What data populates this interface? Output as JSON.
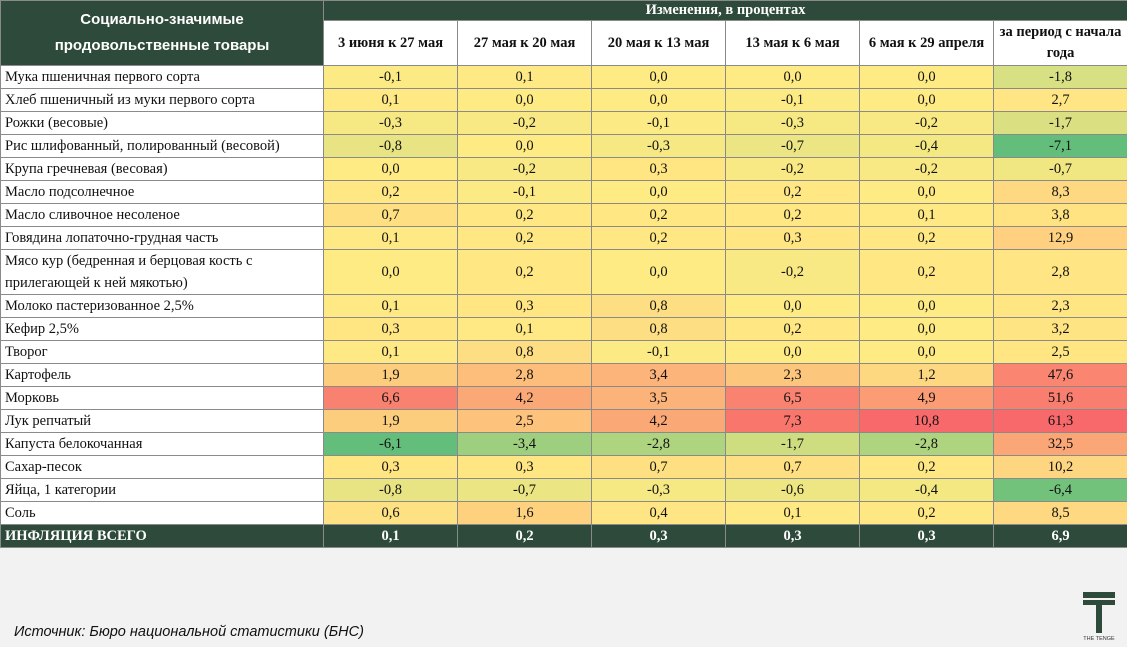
{
  "header": {
    "title": "Социально-значимые продовольственные товары",
    "group": "Изменения, в процентах",
    "columns": [
      "3 июня к 27 мая",
      "27 мая к 20 мая",
      "20 мая к 13 мая",
      "13 мая к 6 мая",
      "6 мая к 29 апреля",
      "за период с начала года"
    ]
  },
  "rows": [
    {
      "name": "Мука пшеничная первого сорта",
      "values": [
        "-0,1",
        "0,1",
        "0,0",
        "0,0",
        "0,0",
        "-1,8"
      ]
    },
    {
      "name": "Хлеб пшеничный из муки первого сорта",
      "values": [
        "0,1",
        "0,0",
        "0,0",
        "-0,1",
        "0,0",
        "2,7"
      ]
    },
    {
      "name": "Рожки (весовые)",
      "values": [
        "-0,3",
        "-0,2",
        "-0,1",
        "-0,3",
        "-0,2",
        "-1,7"
      ]
    },
    {
      "name": "Рис шлифованный, полированный (весовой)",
      "values": [
        "-0,8",
        "0,0",
        "-0,3",
        "-0,7",
        "-0,4",
        "-7,1"
      ]
    },
    {
      "name": "Крупа гречневая (весовая)",
      "values": [
        "0,0",
        "-0,2",
        "0,3",
        "-0,2",
        "-0,2",
        "-0,7"
      ]
    },
    {
      "name": "Масло подсолнечное",
      "values": [
        "0,2",
        "-0,1",
        "0,0",
        "0,2",
        "0,0",
        "8,3"
      ]
    },
    {
      "name": "Масло сливочное несоленое",
      "values": [
        "0,7",
        "0,2",
        "0,2",
        "0,2",
        "0,1",
        "3,8"
      ]
    },
    {
      "name": "Говядина лопаточно-грудная часть",
      "values": [
        "0,1",
        "0,2",
        "0,2",
        "0,3",
        "0,2",
        "12,9"
      ]
    },
    {
      "name": "Мясо кур (бедренная и берцовая кость с прилегающей к ней мякотью)",
      "values": [
        "0,0",
        "0,2",
        "0,0",
        "-0,2",
        "0,2",
        "2,8"
      ]
    },
    {
      "name": "Молоко пастеризованное 2,5%",
      "values": [
        "0,1",
        "0,3",
        "0,8",
        "0,0",
        "0,0",
        "2,3"
      ]
    },
    {
      "name": "Кефир 2,5%",
      "values": [
        "0,3",
        "0,1",
        "0,8",
        "0,2",
        "0,0",
        "3,2"
      ]
    },
    {
      "name": "Творог",
      "values": [
        "0,1",
        "0,8",
        "-0,1",
        "0,0",
        "0,0",
        "2,5"
      ]
    },
    {
      "name": "Картофель",
      "values": [
        "1,9",
        "2,8",
        "3,4",
        "2,3",
        "1,2",
        "47,6"
      ]
    },
    {
      "name": "Морковь",
      "values": [
        "6,6",
        "4,2",
        "3,5",
        "6,5",
        "4,9",
        "51,6"
      ]
    },
    {
      "name": "Лук репчатый",
      "values": [
        "1,9",
        "2,5",
        "4,2",
        "7,3",
        "10,8",
        "61,3"
      ]
    },
    {
      "name": "Капуста белокочанная",
      "values": [
        "-6,1",
        "-3,4",
        "-2,8",
        "-1,7",
        "-2,8",
        "32,5"
      ]
    },
    {
      "name": "Сахар-песок",
      "values": [
        "0,3",
        "0,3",
        "0,7",
        "0,7",
        "0,2",
        "10,2"
      ]
    },
    {
      "name": "Яйца, 1 категории",
      "values": [
        "-0,8",
        "-0,7",
        "-0,3",
        "-0,6",
        "-0,4",
        "-6,4"
      ]
    },
    {
      "name": "Соль",
      "values": [
        "0,6",
        "1,6",
        "0,4",
        "0,1",
        "0,2",
        "8,5"
      ]
    }
  ],
  "total": {
    "name": "ИНФЛЯЦИЯ ВСЕГО",
    "values": [
      "0,1",
      "0,2",
      "0,3",
      "0,3",
      "0,3",
      "6,9"
    ]
  },
  "source": "Источник: Бюро национальной статистики (БНС)",
  "logo": {
    "name": "the-tenge-logo",
    "text": "THE TENGE"
  },
  "colors": {
    "header_bg": "#2d4a3a",
    "green": "#63be7b",
    "yellow": "#ffeb84",
    "red": "#f8696b"
  }
}
